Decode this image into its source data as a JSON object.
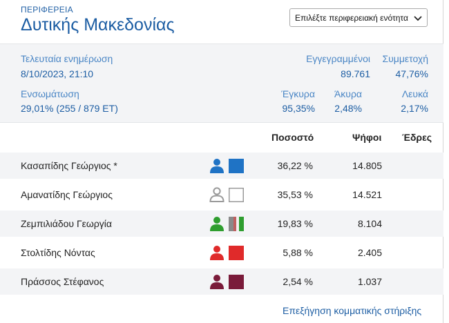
{
  "header": {
    "region_label": "ΠΕΡΙΦΕΡΕΙΑ",
    "region_name": "Δυτικής Μακεδονίας",
    "unit_select": "Επιλέξτε περιφερειακή ενότητα"
  },
  "stats": {
    "last_update_label": "Τελευταία ενημέρωση",
    "last_update_value": "8/10/2023, 21:10",
    "registered_label": "Εγγεγραμμένοι",
    "registered_value": "89.761",
    "turnout_label": "Συμμετοχή",
    "turnout_value": "47,76%",
    "integration_label": "Ενσωμάτωση",
    "integration_value": "29,01% (255 / 879 ΕΤ)",
    "valid_label": "Έγκυρα",
    "valid_value": "95,35%",
    "invalid_label": "Άκυρα",
    "invalid_value": "2,48%",
    "blank_label": "Λευκά",
    "blank_value": "2,17%"
  },
  "table": {
    "columns": {
      "percent": "Ποσοστό",
      "votes": "Ψήφοι",
      "seats": "Έδρες"
    },
    "rows": [
      {
        "name": "Κασαπίδης Γεώργιος *",
        "percent": "36,22 %",
        "votes": "14.805",
        "seats": "",
        "icon_color": "#1f73c5",
        "swatch": "solid",
        "swatch_color": "#1f73c5"
      },
      {
        "name": "Αμανατίδης Γεώργιος",
        "percent": "35,53 %",
        "votes": "14.521",
        "seats": "",
        "icon_color": "#9a9a9a",
        "swatch": "outline",
        "swatch_color": "#9a9a9a"
      },
      {
        "name": "Ζεμπιλιάδου Γεωργία",
        "percent": "19,83 %",
        "votes": "8.104",
        "seats": "",
        "icon_color": "#2f9e2f",
        "swatch": "striped",
        "swatch_color": "#2f9e2f"
      },
      {
        "name": "Στολτίδης Νόντας",
        "percent": "5,88 %",
        "votes": "2.405",
        "seats": "",
        "icon_color": "#e02a2a",
        "swatch": "solid",
        "swatch_color": "#e02a2a"
      },
      {
        "name": "Πράσσος Στέφανος",
        "percent": "2,54 %",
        "votes": "1.037",
        "seats": "",
        "icon_color": "#7a1b3a",
        "swatch": "solid",
        "swatch_color": "#7a1b3a"
      }
    ]
  },
  "footer": {
    "link": "Επεξήγηση κομματικής στήριξης"
  }
}
